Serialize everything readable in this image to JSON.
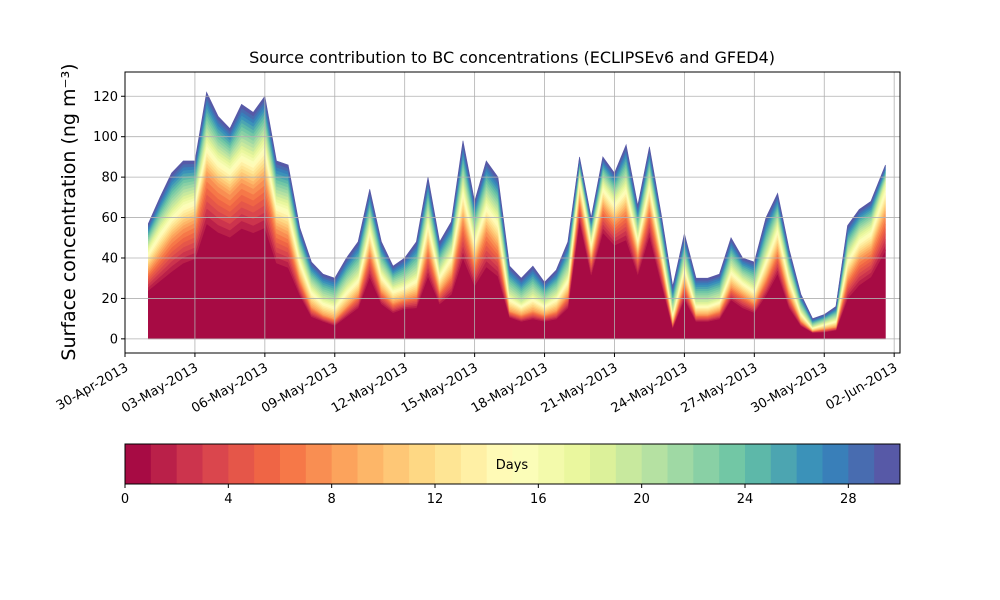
{
  "chart_data": {
    "type": "area",
    "title": "Source contribution to BC concentrations (ECLIPSEv6 and GFED4)",
    "xlabel": "",
    "ylabel": "Surface concentration (ng m⁻³)",
    "ylim": [
      -7,
      132
    ],
    "xlim": [
      "2013-04-30T00:00",
      "2013-06-02T06:00"
    ],
    "yticks": [
      0,
      20,
      40,
      60,
      80,
      100,
      120
    ],
    "xticks": [
      "30-Apr-2013",
      "03-May-2013",
      "06-May-2013",
      "09-May-2013",
      "12-May-2013",
      "15-May-2013",
      "18-May-2013",
      "21-May-2013",
      "24-May-2013",
      "27-May-2013",
      "30-May-2013",
      "02-Jun-2013"
    ],
    "grid": true,
    "colormap": "Spectral",
    "colorbar": {
      "label": "Days",
      "range": [
        0,
        30
      ],
      "ticks": [
        0,
        4,
        8,
        12,
        16,
        20,
        24,
        28
      ],
      "orientation": "horizontal",
      "levels": 30
    },
    "series_note": "stacked contributions by age in days; total and selected cumulative levels",
    "x": [
      "2013-05-01T00:00",
      "2013-05-01T12:00",
      "2013-05-02T00:00",
      "2013-05-02T12:00",
      "2013-05-03T00:00",
      "2013-05-03T12:00",
      "2013-05-04T00:00",
      "2013-05-04T12:00",
      "2013-05-05T00:00",
      "2013-05-05T12:00",
      "2013-05-06T00:00",
      "2013-05-06T12:00",
      "2013-05-07T00:00",
      "2013-05-07T12:00",
      "2013-05-08T00:00",
      "2013-05-08T12:00",
      "2013-05-09T00:00",
      "2013-05-09T12:00",
      "2013-05-10T00:00",
      "2013-05-10T12:00",
      "2013-05-11T00:00",
      "2013-05-11T12:00",
      "2013-05-12T00:00",
      "2013-05-12T12:00",
      "2013-05-13T00:00",
      "2013-05-13T12:00",
      "2013-05-14T00:00",
      "2013-05-14T12:00",
      "2013-05-15T00:00",
      "2013-05-15T12:00",
      "2013-05-16T00:00",
      "2013-05-16T12:00",
      "2013-05-17T00:00",
      "2013-05-17T12:00",
      "2013-05-18T00:00",
      "2013-05-18T12:00",
      "2013-05-19T00:00",
      "2013-05-19T12:00",
      "2013-05-20T00:00",
      "2013-05-20T12:00",
      "2013-05-21T00:00",
      "2013-05-21T12:00",
      "2013-05-22T00:00",
      "2013-05-22T12:00",
      "2013-05-23T00:00",
      "2013-05-23T12:00",
      "2013-05-24T00:00",
      "2013-05-24T12:00",
      "2013-05-25T00:00",
      "2013-05-25T12:00",
      "2013-05-26T00:00",
      "2013-05-26T12:00",
      "2013-05-27T00:00",
      "2013-05-27T12:00",
      "2013-05-28T00:00",
      "2013-05-28T12:00",
      "2013-05-29T00:00",
      "2013-05-29T12:00",
      "2013-05-30T00:00",
      "2013-05-30T12:00",
      "2013-05-31T00:00",
      "2013-05-31T12:00",
      "2013-06-01T00:00",
      "2013-06-01T15:00"
    ],
    "series": [
      {
        "name": "",
        "values": [
          57,
          70,
          82,
          88,
          88,
          122,
          110,
          104,
          116,
          112,
          120,
          88,
          86,
          55,
          38,
          32,
          30,
          40,
          48,
          74,
          48,
          36,
          40,
          48,
          80,
          48,
          58,
          98,
          68,
          88,
          80,
          36,
          30,
          36,
          28,
          34,
          48,
          90,
          60,
          90,
          82,
          96,
          66,
          95,
          62,
          26,
          52,
          30,
          30,
          32,
          50,
          40,
          38,
          60,
          72,
          44,
          22,
          10,
          12,
          16,
          56,
          64,
          68,
          86
        ]
      },
      {
        "name": "",
        "values": [
          46,
          56,
          64,
          70,
          72,
          100,
          92,
          88,
          95,
          92,
          100,
          70,
          68,
          42,
          26,
          20,
          18,
          26,
          32,
          58,
          34,
          26,
          28,
          32,
          62,
          34,
          44,
          78,
          52,
          70,
          62,
          22,
          18,
          22,
          18,
          22,
          32,
          82,
          50,
          78,
          70,
          78,
          52,
          80,
          48,
          14,
          38,
          18,
          18,
          20,
          36,
          30,
          26,
          42,
          58,
          32,
          14,
          6,
          8,
          10,
          42,
          52,
          56,
          78
        ]
      },
      {
        "name": "",
        "values": [
          34,
          42,
          50,
          55,
          58,
          82,
          76,
          72,
          78,
          75,
          80,
          55,
          52,
          30,
          16,
          12,
          10,
          16,
          22,
          44,
          24,
          18,
          20,
          22,
          46,
          24,
          32,
          60,
          38,
          54,
          46,
          14,
          12,
          14,
          12,
          14,
          22,
          70,
          40,
          66,
          58,
          64,
          42,
          66,
          38,
          8,
          28,
          12,
          12,
          14,
          26,
          22,
          18,
          30,
          44,
          22,
          9,
          4,
          5,
          6,
          30,
          40,
          44,
          62
        ]
      },
      {
        "name": "",
        "values": [
          22,
          26,
          30,
          34,
          36,
          52,
          48,
          46,
          50,
          48,
          50,
          34,
          32,
          20,
          10,
          8,
          6,
          10,
          14,
          28,
          16,
          12,
          14,
          14,
          28,
          16,
          20,
          36,
          24,
          32,
          28,
          10,
          8,
          9,
          8,
          9,
          14,
          56,
          30,
          50,
          44,
          46,
          30,
          48,
          26,
          5,
          18,
          8,
          8,
          9,
          18,
          14,
          12,
          20,
          30,
          14,
          6,
          3,
          3,
          4,
          18,
          24,
          28,
          40
        ]
      }
    ]
  }
}
